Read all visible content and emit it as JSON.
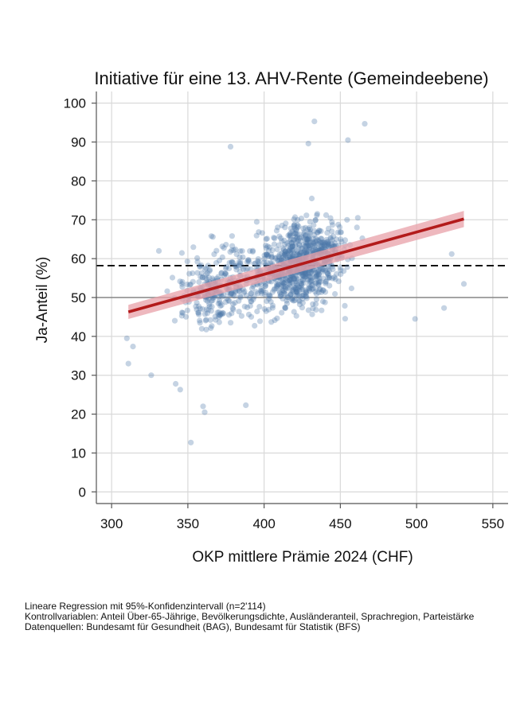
{
  "chart_data": {
    "type": "scatter",
    "title": "Initiative für eine 13. AHV-Rente (Gemeindeebene)",
    "xlabel": "OKP mittlere Prämie 2024 (CHF)",
    "ylabel": "Ja-Anteil (%)",
    "xlim": [
      290,
      560
    ],
    "ylim": [
      -3,
      103
    ],
    "x_ticks": [
      300,
      350,
      400,
      450,
      500,
      550
    ],
    "y_ticks": [
      0,
      10,
      20,
      30,
      40,
      50,
      60,
      70,
      80,
      90,
      100
    ],
    "grid": true,
    "n_points": 2114,
    "point_color": "#4a76a8",
    "fit_line": {
      "label": "Lineare Regression mit 95%-Konfidenzintervall",
      "color": "#b31b1b",
      "band_color": "#e8a0a8",
      "x": [
        311,
        531
      ],
      "y": [
        46.3,
        70.2
      ]
    },
    "reference_lines": [
      {
        "value": 58.2,
        "style": "dashed",
        "color": "#000000"
      },
      {
        "value": 50,
        "style": "solid",
        "color": "#888888"
      }
    ],
    "sample_points": [
      {
        "x": 352,
        "y": 12.7
      },
      {
        "x": 360,
        "y": 22
      },
      {
        "x": 361,
        "y": 20.5
      },
      {
        "x": 388,
        "y": 22.3
      },
      {
        "x": 345,
        "y": 26.3
      },
      {
        "x": 342,
        "y": 27.8
      },
      {
        "x": 311,
        "y": 33
      },
      {
        "x": 326,
        "y": 30
      },
      {
        "x": 433,
        "y": 95.3
      },
      {
        "x": 466,
        "y": 94.7
      },
      {
        "x": 378,
        "y": 88.8
      },
      {
        "x": 429,
        "y": 89.6
      },
      {
        "x": 455,
        "y": 90.5
      },
      {
        "x": 310,
        "y": 39.5
      },
      {
        "x": 314,
        "y": 37.4
      },
      {
        "x": 331,
        "y": 62
      },
      {
        "x": 523,
        "y": 61.2
      },
      {
        "x": 531,
        "y": 53.5
      },
      {
        "x": 518,
        "y": 47.3
      },
      {
        "x": 499,
        "y": 44.5
      }
    ]
  },
  "footnotes": [
    "Lineare Regression mit 95%-Konfidenzintervall (n=2'114)",
    "Kontrollvariablen: Anteil Über-65-Jährige, Bevölkerungsdichte, Ausländeranteil, Sprachregion, Parteistärke",
    "Datenquellen: Bundesamt für Gesundheit (BAG), Bundesamt für Statistik (BFS)"
  ]
}
